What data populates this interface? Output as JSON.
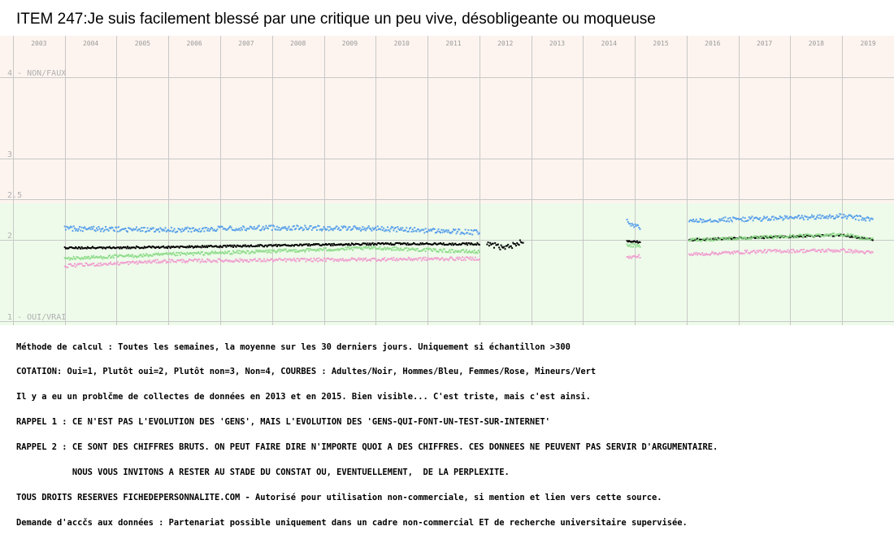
{
  "title": "ITEM 247:Je suis facilement blessé par une critique un peu vive, désobligeante ou moqueuse",
  "colors": {
    "band_top": "#fdf4ef",
    "band_bottom": "#eefbea",
    "grid": "#c8c8c8",
    "black": "#000000",
    "blue": "#5aa0ea",
    "green": "#90dc8c",
    "pink": "#f0a0d0"
  },
  "chart_data": {
    "type": "scatter",
    "title": "ITEM 247:Je suis facilement blessé par une critique un peu vive, désobligeante ou moqueuse",
    "years": [
      "2003",
      "2004",
      "2005",
      "2006",
      "2007",
      "2008",
      "2009",
      "2010",
      "2011",
      "2012",
      "2013",
      "2014",
      "2015",
      "2016",
      "2017",
      "2018",
      "2019"
    ],
    "x_range": [
      2002.75,
      2020.0
    ],
    "ylim": [
      1,
      4
    ],
    "y_ticks": [
      {
        "value": 4,
        "label": "4 - NON/FAUX"
      },
      {
        "value": 3,
        "label": "3"
      },
      {
        "value": 2.5,
        "label": "2.5"
      },
      {
        "value": 2,
        "label": "2"
      },
      {
        "value": 1,
        "label": "1 - OUI/VRAI"
      }
    ],
    "band_split": 2.5,
    "segments": [
      [
        2004.0,
        2012.0
      ],
      [
        2012.15,
        2012.85
      ],
      [
        2014.85,
        2015.1
      ],
      [
        2016.05,
        2019.6
      ]
    ],
    "series": [
      {
        "key": "black",
        "color": "#000000",
        "points": [
          [
            2004.0,
            1.9
          ],
          [
            2006.0,
            1.91
          ],
          [
            2008.0,
            1.93
          ],
          [
            2010.0,
            1.95
          ],
          [
            2012.0,
            1.95
          ],
          [
            2012.5,
            1.91
          ],
          [
            2012.85,
            1.98
          ],
          [
            2014.85,
            1.99
          ],
          [
            2015.1,
            1.97
          ],
          [
            2016.05,
            2.0
          ],
          [
            2017.5,
            2.03
          ],
          [
            2019.0,
            2.06
          ],
          [
            2019.6,
            2.0
          ]
        ]
      },
      {
        "key": "blue",
        "color": "#5aa0ea",
        "points": [
          [
            2004.0,
            2.14
          ],
          [
            2006.0,
            2.12
          ],
          [
            2008.0,
            2.15
          ],
          [
            2010.0,
            2.14
          ],
          [
            2012.0,
            2.09
          ],
          [
            2014.85,
            2.22
          ],
          [
            2015.1,
            2.14
          ],
          [
            2016.05,
            2.24
          ],
          [
            2017.5,
            2.26
          ],
          [
            2019.0,
            2.29
          ],
          [
            2019.6,
            2.25
          ]
        ]
      },
      {
        "key": "green",
        "color": "#90dc8c",
        "points": [
          [
            2004.0,
            1.77
          ],
          [
            2006.0,
            1.82
          ],
          [
            2008.0,
            1.86
          ],
          [
            2010.0,
            1.9
          ],
          [
            2012.0,
            1.85
          ],
          [
            2014.85,
            1.94
          ],
          [
            2015.1,
            1.92
          ],
          [
            2016.05,
            2.0
          ],
          [
            2017.5,
            2.03
          ],
          [
            2019.0,
            2.07
          ],
          [
            2019.6,
            2.0
          ]
        ]
      },
      {
        "key": "pink",
        "color": "#f0a0d0",
        "points": [
          [
            2004.0,
            1.68
          ],
          [
            2006.0,
            1.74
          ],
          [
            2008.0,
            1.75
          ],
          [
            2010.0,
            1.76
          ],
          [
            2012.0,
            1.77
          ],
          [
            2014.85,
            1.78
          ],
          [
            2015.1,
            1.8
          ],
          [
            2016.05,
            1.82
          ],
          [
            2017.5,
            1.86
          ],
          [
            2019.0,
            1.87
          ],
          [
            2019.6,
            1.84
          ]
        ]
      }
    ]
  },
  "notes": [
    "Méthode de calcul : Toutes les semaines, la moyenne sur les 30 derniers jours. Uniquement si échantillon >300",
    "COTATION: Oui=1, Plutôt oui=2, Plutôt non=3, Non=4, COURBES : Adultes/Noir, Hommes/Bleu, Femmes/Rose, Mineurs/Vert",
    "Il y a eu un problčme de collectes de données en 2013 et en 2015. Bien visible... C'est triste, mais c'est ainsi.",
    "RAPPEL 1 : CE N'EST PAS L'EVOLUTION DES 'GENS', MAIS L'EVOLUTION DES 'GENS-QUI-FONT-UN-TEST-SUR-INTERNET'",
    "RAPPEL 2 : CE SONT DES CHIFFRES BRUTS. ON PEUT FAIRE DIRE N'IMPORTE QUOI A DES CHIFFRES. CES DONNEES NE PEUVENT PAS SERVIR D'ARGUMENTAIRE.",
    "           NOUS VOUS INVITONS A RESTER AU STADE DU CONSTAT OU, EVENTUELLEMENT,  DE LA PERPLEXITE.",
    "TOUS DROITS RESERVES FICHEDEPERSONNALITE.COM - Autorisé pour utilisation non-commerciale, si mention et lien vers cette source.",
    "Demande d'accčs aux données : Partenariat possible uniquement dans un cadre non-commercial ET de recherche universitaire supervisée."
  ]
}
